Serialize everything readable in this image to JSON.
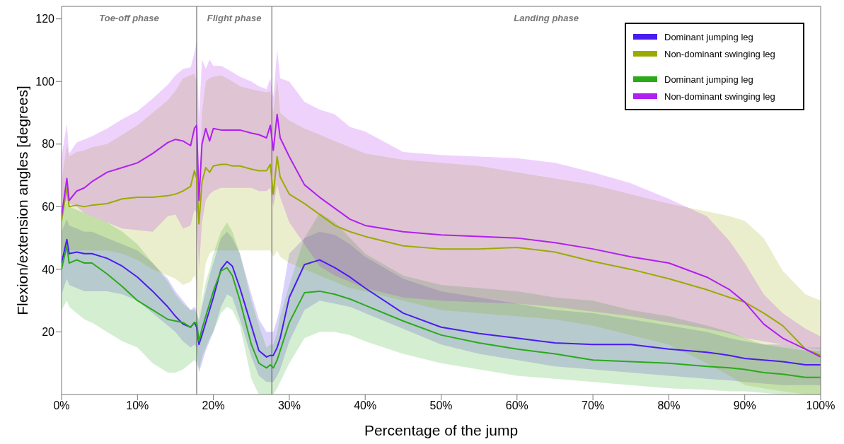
{
  "chart_data": {
    "type": "line",
    "xlabel": "Percentage of the jump",
    "ylabel": "Flexion/extension angles [degrees]",
    "xlim": [
      0,
      100
    ],
    "ylim": [
      0,
      124
    ],
    "xticks": [
      {
        "value": 0,
        "label": "0%"
      },
      {
        "value": 10,
        "label": "10%"
      },
      {
        "value": 20,
        "label": "20%"
      },
      {
        "value": 30,
        "label": "30%"
      },
      {
        "value": 40,
        "label": "40%"
      },
      {
        "value": 50,
        "label": "50%"
      },
      {
        "value": 60,
        "label": "60%"
      },
      {
        "value": 70,
        "label": "70%"
      },
      {
        "value": 80,
        "label": "80%"
      },
      {
        "value": 90,
        "label": "90%"
      },
      {
        "value": 100,
        "label": "100%"
      }
    ],
    "yticks": [
      20,
      40,
      60,
      80,
      100,
      120
    ],
    "legend": "top right",
    "marker": "none",
    "line_style": "solid",
    "ref_lines": [
      {
        "axis": "x",
        "value": 17.8
      },
      {
        "axis": "x",
        "value": 27.7
      }
    ],
    "annotations": [
      "Toe-off phase",
      "Flight phase",
      "Landing phase"
    ],
    "x": [
      0,
      0.7,
      1,
      2,
      3,
      4,
      6,
      8,
      10,
      12,
      14,
      15,
      16,
      17,
      17.5,
      17.8,
      18.1,
      18.5,
      19,
      19.5,
      20,
      21,
      21.8,
      22.5,
      23.5,
      25,
      26,
      27,
      27.5,
      27.9,
      28.4,
      28.8,
      30,
      32,
      34,
      36,
      38,
      40,
      45,
      50,
      55,
      60,
      65,
      70,
      75,
      80,
      85,
      88,
      90,
      92.5,
      95,
      98,
      100
    ],
    "series": [
      {
        "name": "Dominant jumping leg",
        "color": "#4a1cf0",
        "values": [
          42,
          49.5,
          45,
          45.5,
          45,
          45,
          43.5,
          41,
          37.5,
          33,
          28,
          25,
          22.5,
          21.5,
          23,
          21.5,
          16,
          19,
          23,
          27,
          31,
          40,
          42.5,
          41,
          34,
          22,
          14,
          12,
          12.5,
          12.5,
          15,
          18,
          31,
          41.5,
          43,
          40.5,
          37.5,
          34,
          26,
          21.5,
          19.5,
          18,
          16.5,
          16,
          16,
          14.5,
          13.5,
          12.5,
          11.5,
          11,
          10.5,
          9.5,
          9.5
        ],
        "lower": [
          32,
          37,
          35,
          34,
          33,
          33,
          33,
          32,
          30,
          26,
          22,
          20,
          17,
          15,
          16,
          15,
          7,
          10,
          14,
          17,
          20,
          28,
          32,
          31,
          24,
          12,
          6,
          4,
          4,
          4,
          6,
          8,
          17,
          27,
          30,
          29,
          28,
          26,
          21,
          16,
          13,
          11,
          9,
          8,
          7,
          6,
          5,
          4.5,
          4,
          3.5,
          3,
          3,
          3
        ],
        "upper": [
          52,
          56,
          54,
          53,
          52,
          52,
          50,
          48,
          46,
          42,
          37,
          33,
          30,
          27,
          28,
          27,
          23,
          28,
          33,
          38,
          42,
          50,
          52,
          50,
          45,
          32,
          24,
          20,
          20,
          20,
          24,
          28,
          45,
          50,
          52,
          51,
          48,
          44,
          37,
          33,
          31,
          29,
          27,
          26,
          24,
          22,
          20,
          18,
          17,
          16,
          16,
          15,
          15
        ]
      },
      {
        "name": "Non-dominant swinging leg",
        "color": "#9aab00",
        "values": [
          55.5,
          66,
          60,
          60.5,
          60,
          60.5,
          61,
          62.5,
          63,
          63,
          63.5,
          64,
          65,
          66.5,
          71.5,
          69,
          54.5,
          68,
          72.5,
          71,
          73,
          73.5,
          73.5,
          73,
          73,
          72,
          71.5,
          71.5,
          73.5,
          64,
          76,
          69.5,
          64,
          61,
          57.5,
          54,
          52,
          50.5,
          47.5,
          46.5,
          46.5,
          47,
          45.5,
          42.5,
          40,
          37,
          33.5,
          31,
          29.5,
          26,
          22,
          14.5,
          12.5
        ],
        "lower": [
          45,
          48,
          46,
          46,
          46,
          46,
          46,
          45,
          43,
          40,
          38,
          37,
          35,
          36,
          38,
          36,
          22,
          32,
          42,
          45,
          46,
          46,
          46,
          46,
          46,
          46,
          46,
          46,
          46,
          44,
          46,
          44,
          42,
          40,
          38,
          36,
          34,
          33,
          30,
          27,
          26,
          25,
          24,
          22,
          19,
          16,
          10,
          6,
          3,
          2,
          1,
          0,
          0
        ],
        "upper": [
          68,
          80,
          76,
          77.5,
          78,
          79,
          80,
          83,
          86,
          90,
          94,
          97,
          101,
          102,
          102.5,
          100,
          63,
          90,
          100,
          101,
          101.5,
          102,
          101,
          100,
          98.5,
          97.5,
          97,
          96.5,
          97,
          90,
          101,
          90,
          87.5,
          85,
          83,
          81,
          79,
          77,
          75,
          74,
          73,
          71,
          69,
          67,
          64,
          61,
          58.5,
          57,
          55.5,
          50,
          39.5,
          32,
          30
        ]
      },
      {
        "name": "Dominant jumping leg",
        "color": "#2aaa1a",
        "values": [
          40,
          47.5,
          42,
          43,
          42,
          42,
          38.5,
          34.5,
          30,
          27,
          24,
          23.5,
          23,
          21.5,
          23,
          23,
          17,
          21,
          25,
          29,
          33,
          39.5,
          40.5,
          38,
          30,
          16,
          10,
          8.5,
          9.5,
          8.5,
          11,
          14,
          23,
          32.5,
          33,
          32,
          30.5,
          28.5,
          23.5,
          19,
          16.5,
          14.5,
          13,
          11,
          10.5,
          10,
          9,
          8.5,
          8,
          7,
          6.5,
          5.5,
          5.5
        ],
        "lower": [
          27,
          30,
          28,
          26,
          24,
          23,
          20,
          17,
          15,
          10,
          7,
          7,
          8,
          10,
          11,
          10,
          8,
          12,
          15,
          18,
          20,
          26,
          28,
          27,
          22,
          5,
          0,
          0,
          0,
          0,
          2,
          4,
          10,
          18,
          20,
          20,
          19,
          17,
          13,
          10,
          8,
          6,
          5,
          4,
          3,
          2,
          1.5,
          1,
          1,
          0.5,
          0,
          0,
          0
        ],
        "upper": [
          58,
          62,
          60,
          59,
          58,
          57,
          55,
          52,
          48,
          42,
          36,
          32,
          29,
          27,
          27,
          26,
          24,
          30,
          36,
          40,
          45,
          52,
          55,
          52,
          45,
          30,
          22,
          15,
          16,
          16,
          20,
          25,
          35,
          50,
          58,
          55,
          50,
          45,
          38,
          35,
          34,
          33,
          31,
          30,
          27,
          25,
          22,
          20,
          18,
          16,
          15,
          14,
          14
        ]
      },
      {
        "name": "Non-dominant swinging leg",
        "color": "#b020f0",
        "values": [
          57,
          69,
          62,
          65,
          66,
          68,
          71,
          72.5,
          74,
          77,
          80.5,
          81.5,
          81,
          79.5,
          85,
          86,
          62,
          80,
          85,
          81,
          85,
          84.5,
          84.5,
          84.5,
          84.5,
          83.5,
          83,
          82,
          86,
          78,
          89.5,
          82,
          76,
          67,
          63,
          59.5,
          56,
          54,
          52,
          51,
          50.5,
          50,
          48.5,
          46.5,
          44,
          42,
          37.5,
          33.5,
          29.5,
          22.5,
          18,
          14.5,
          12
        ],
        "lower": [
          60,
          62,
          61,
          60,
          58,
          57,
          55,
          53,
          52.5,
          52,
          57,
          57.5,
          53,
          54,
          59,
          58,
          40,
          55,
          62,
          64,
          65,
          66,
          66,
          66,
          66,
          66,
          65,
          65,
          66,
          60,
          67,
          63,
          55,
          48,
          41,
          38,
          36,
          34,
          31,
          30,
          29.5,
          29,
          28,
          26.5,
          25,
          23,
          21,
          19.5,
          18,
          17,
          16,
          15,
          14.5
        ],
        "upper": [
          76,
          86.5,
          77,
          80.5,
          81.5,
          82.5,
          85,
          88,
          90.5,
          94.5,
          99,
          102,
          104,
          104.5,
          109,
          113,
          88,
          107,
          104,
          107,
          105,
          105,
          104,
          103,
          101.5,
          100,
          98.5,
          97.5,
          101,
          95,
          110,
          101,
          100,
          93.5,
          91,
          89.5,
          85.5,
          84,
          77.5,
          76.5,
          76,
          75.5,
          74,
          71,
          67.5,
          62.5,
          57,
          49,
          42,
          32,
          26,
          21,
          18.5
        ]
      }
    ]
  }
}
